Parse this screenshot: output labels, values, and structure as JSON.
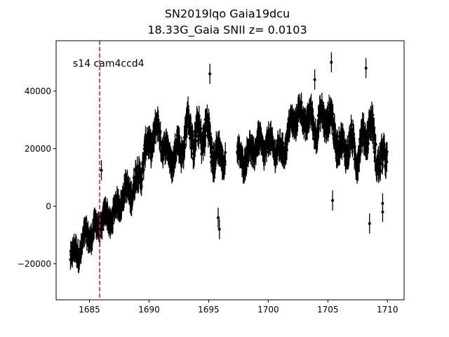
{
  "chart_data": {
    "type": "scatter",
    "title": "SN2019lqo  Gaia19dcu",
    "subtitle": "18.33G_Gaia SNII z= 0.0103",
    "annotation": "s14 cam4ccd4",
    "xlabel": "",
    "ylabel": "",
    "xlim": [
      1682.2,
      1711.4
    ],
    "ylim": [
      -32500,
      57500
    ],
    "xticks": [
      1685,
      1690,
      1695,
      1700,
      1705,
      1710
    ],
    "yticks": [
      -20000,
      0,
      20000,
      40000
    ],
    "xtick_labels": [
      "1685",
      "1690",
      "1695",
      "1700",
      "1705",
      "1710"
    ],
    "ytick_labels": [
      "−20000",
      "0",
      "20000",
      "40000"
    ],
    "grid": false,
    "vline": {
      "x": 1685.85,
      "color": "#d62728",
      "style": "dashed"
    },
    "marker_color": "#000000",
    "errorbars": true,
    "gap": [
      1696.4,
      1697.4
    ],
    "trend": {
      "x": [
        1683.4,
        1684.0,
        1684.6,
        1685.2,
        1685.8,
        1686.3,
        1686.8,
        1687.3,
        1687.8,
        1688.3,
        1688.8,
        1689.3,
        1689.8,
        1690.3,
        1690.8,
        1691.3,
        1691.8,
        1692.3,
        1692.8,
        1693.3,
        1693.8,
        1694.3,
        1694.8,
        1695.3,
        1695.8,
        1696.3,
        1697.5,
        1698.0,
        1698.5,
        1699.0,
        1699.5,
        1700.0,
        1700.5,
        1701.0,
        1701.5,
        1702.0,
        1702.5,
        1703.0,
        1703.5,
        1704.0,
        1704.5,
        1705.0,
        1705.5,
        1706.0,
        1706.5,
        1707.0,
        1707.5,
        1708.0,
        1708.5,
        1709.0,
        1709.5,
        1710.0
      ],
      "y": [
        -15000,
        -17000,
        -13000,
        -10000,
        -5000,
        -2000,
        -4000,
        -2000,
        2000,
        5000,
        9000,
        15000,
        20000,
        22000,
        24000,
        20000,
        18000,
        22000,
        21000,
        26000,
        20000,
        24000,
        30000,
        22000,
        18000,
        15000,
        17000,
        19000,
        20000,
        21000,
        18000,
        20000,
        22000,
        20000,
        24000,
        28000,
        30000,
        29000,
        31000,
        30000,
        32000,
        30000,
        24000,
        18000,
        22000,
        24000,
        20000,
        22000,
        26000,
        18000,
        15000,
        22000
      ],
      "amplitude": [
        4000,
        5000,
        5000,
        5000,
        5000,
        4500,
        5000,
        5000,
        5000,
        6000,
        7000,
        7000,
        7000,
        7000,
        7000,
        6000,
        6000,
        7000,
        7000,
        8000,
        9000,
        9000,
        9000,
        9000,
        7000,
        6000,
        6000,
        6000,
        6000,
        6000,
        6000,
        6000,
        6000,
        6000,
        6000,
        6000,
        6000,
        6000,
        7000,
        7000,
        7000,
        8000,
        8000,
        7000,
        7000,
        8000,
        8000,
        8000,
        8000,
        9000,
        9000,
        7000
      ]
    },
    "points_per_day": 44,
    "errorbar_size": 3500,
    "outliers": [
      {
        "x": 1686.0,
        "y": 12500
      },
      {
        "x": 1695.9,
        "y": -8000
      },
      {
        "x": 1695.8,
        "y": -4000
      },
      {
        "x": 1705.4,
        "y": 2000
      },
      {
        "x": 1709.6,
        "y": 1000
      },
      {
        "x": 1709.6,
        "y": -2000
      },
      {
        "x": 1708.5,
        "y": -6000
      },
      {
        "x": 1705.3,
        "y": 50000
      },
      {
        "x": 1708.2,
        "y": 48000
      },
      {
        "x": 1695.1,
        "y": 46000
      },
      {
        "x": 1703.9,
        "y": 44000
      }
    ]
  }
}
